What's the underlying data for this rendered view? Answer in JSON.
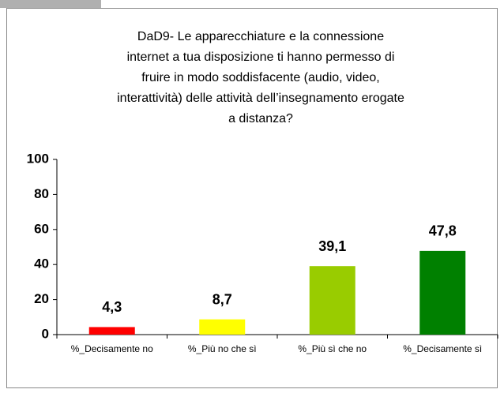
{
  "chart_data": {
    "type": "bar",
    "title": [
      "DaD9- Le apparecchiature e la connessione",
      "internet a tua disposizione ti hanno permesso di",
      "fruire in modo soddisfacente (audio, video,",
      "interattività) delle attività dell’insegnamento erogate",
      "a distanza?"
    ],
    "categories": [
      "%_Decisamente no",
      "%_Più no che sì",
      "%_Più sì che no",
      "%_Decisamente sì"
    ],
    "values": [
      4.3,
      8.7,
      39.1,
      47.8
    ],
    "value_labels": [
      "4,3",
      "8,7",
      "39,1",
      "47,8"
    ],
    "colors": [
      "#ff0000",
      "#ffff00",
      "#99cc00",
      "#008000"
    ],
    "ylim": [
      0,
      100
    ],
    "yticks": [
      0,
      20,
      40,
      60,
      80,
      100
    ],
    "grid": false
  }
}
